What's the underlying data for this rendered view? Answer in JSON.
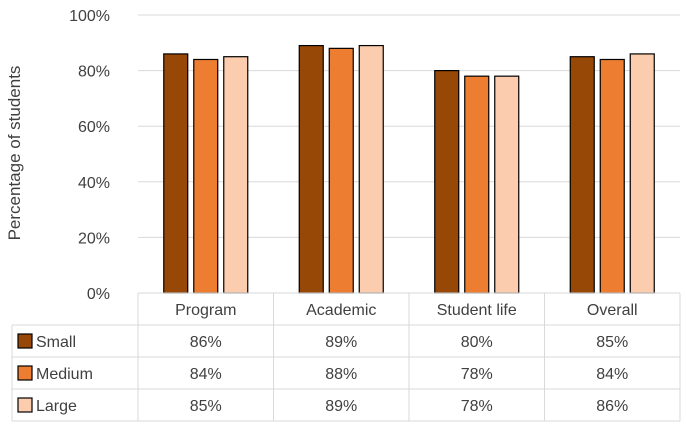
{
  "chart_data": {
    "type": "bar",
    "title": "",
    "xlabel": "",
    "ylabel": "Percentage of students",
    "ylim": [
      0,
      100
    ],
    "yticks": [
      "0%",
      "20%",
      "40%",
      "60%",
      "80%",
      "100%"
    ],
    "grid": true,
    "legend": "data-table",
    "categories": [
      "Program",
      "Academic",
      "Student life",
      "Overall"
    ],
    "series": [
      {
        "name": "Small",
        "color": "#974706",
        "values": [
          86,
          89,
          80,
          85
        ],
        "labels": [
          "86%",
          "89%",
          "80%",
          "85%"
        ]
      },
      {
        "name": "Medium",
        "color": "#ED7D31",
        "values": [
          84,
          88,
          78,
          84
        ],
        "labels": [
          "84%",
          "88%",
          "78%",
          "84%"
        ]
      },
      {
        "name": "Large",
        "color": "#FBCDAE",
        "values": [
          85,
          89,
          78,
          86
        ],
        "labels": [
          "85%",
          "89%",
          "78%",
          "86%"
        ]
      }
    ]
  }
}
